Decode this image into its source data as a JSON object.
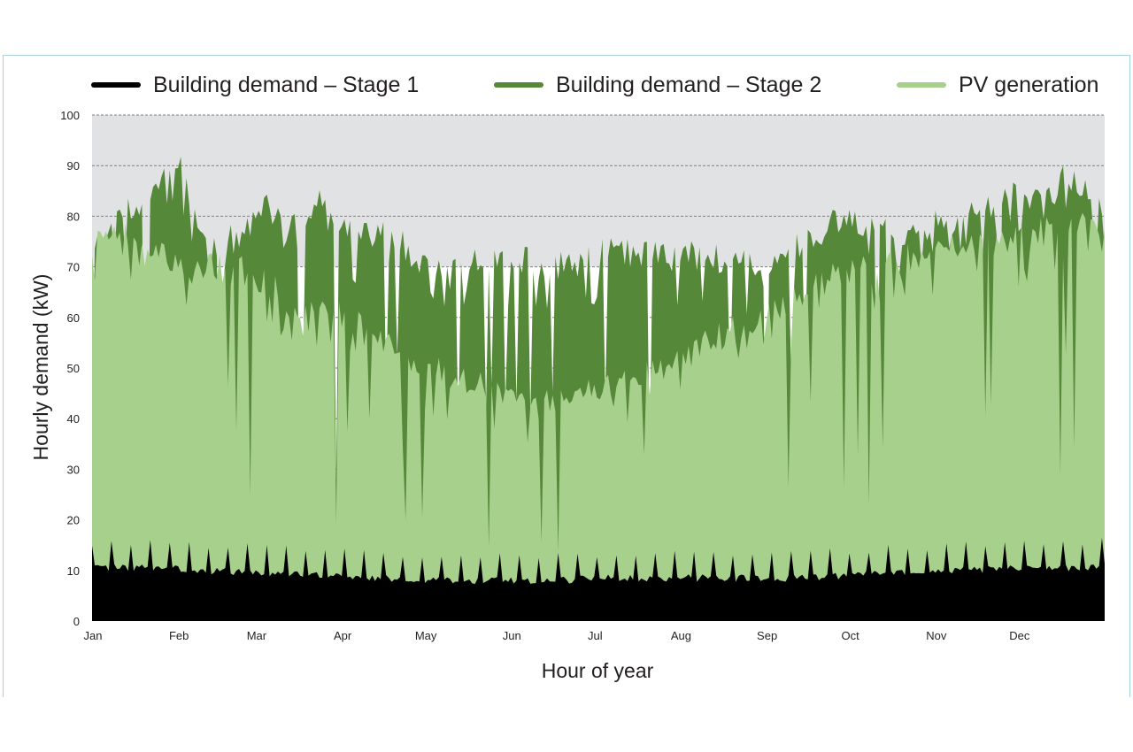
{
  "chart_data": {
    "type": "area",
    "title": "",
    "xlabel": "Hour of year",
    "ylabel": "Hourly demand (kW)",
    "ylim": [
      0,
      100
    ],
    "xlim": [
      0,
      8760
    ],
    "yticks": [
      0,
      10,
      20,
      30,
      40,
      50,
      60,
      70,
      80,
      90,
      100
    ],
    "month_ticks": [
      {
        "label": "Jan",
        "hour": 0
      },
      {
        "label": "Feb",
        "hour": 744
      },
      {
        "label": "Mar",
        "hour": 1416
      },
      {
        "label": "Apr",
        "hour": 2160
      },
      {
        "label": "May",
        "hour": 2880
      },
      {
        "label": "Jun",
        "hour": 3624
      },
      {
        "label": "Jul",
        "hour": 4344
      },
      {
        "label": "Aug",
        "hour": 5088
      },
      {
        "label": "Sep",
        "hour": 5832
      },
      {
        "label": "Oct",
        "hour": 6552
      },
      {
        "label": "Nov",
        "hour": 7296
      },
      {
        "label": "Dec",
        "hour": 8016
      }
    ],
    "grid": "horizontal dashed",
    "legend_position": "top",
    "background_band": {
      "from": 70,
      "to": 100,
      "color": "#e1e2e4"
    },
    "series": [
      {
        "name": "Building demand – Stage 2",
        "color": "#56883a",
        "x": [
          0,
          250,
          500,
          750,
          1000,
          1250,
          1500,
          1750,
          2000,
          2250,
          2500,
          2750,
          3000,
          3250,
          3500,
          3750,
          4000,
          4250,
          4500,
          4750,
          5000,
          5250,
          5500,
          5750,
          6000,
          6250,
          6500,
          6750,
          7000,
          7250,
          7500,
          7750,
          8000,
          8250,
          8500,
          8760
        ],
        "values": [
          72,
          80,
          84,
          90,
          75,
          76,
          82,
          78,
          85,
          76,
          79,
          73,
          69,
          71,
          72,
          71,
          70,
          72,
          73,
          73,
          72,
          73,
          71,
          70,
          72,
          76,
          80,
          78,
          77,
          78,
          79,
          82,
          84,
          86,
          88,
          80
        ]
      },
      {
        "name": "PV generation",
        "color": "#a8d08d",
        "x": [
          0,
          250,
          500,
          750,
          1000,
          1250,
          1500,
          1750,
          2000,
          2250,
          2500,
          2750,
          3000,
          3250,
          3500,
          3750,
          4000,
          4250,
          4500,
          4750,
          5000,
          5250,
          5500,
          5750,
          6000,
          6250,
          6500,
          6750,
          7000,
          7250,
          7500,
          7750,
          8000,
          8250,
          8500,
          8760
        ],
        "values": [
          74,
          78,
          74,
          70,
          70,
          70,
          67,
          63,
          62,
          60,
          56,
          52,
          50,
          47,
          46,
          45,
          44,
          45,
          46,
          48,
          51,
          54,
          57,
          60,
          63,
          66,
          69,
          71,
          72,
          72,
          74,
          74,
          76,
          77,
          78,
          78
        ]
      },
      {
        "name": "Building demand – Stage 1",
        "color": "#000000",
        "x": [
          0,
          500,
          1000,
          1500,
          2000,
          2500,
          3000,
          3500,
          4000,
          4500,
          5000,
          5500,
          6000,
          6500,
          7000,
          7500,
          8000,
          8500,
          8760
        ],
        "values": [
          10.5,
          10.5,
          10,
          9.5,
          9,
          8.5,
          8,
          8,
          8,
          8.5,
          8.5,
          8.5,
          8.5,
          9,
          9.5,
          10,
          10.5,
          10.5,
          11
        ]
      }
    ]
  }
}
